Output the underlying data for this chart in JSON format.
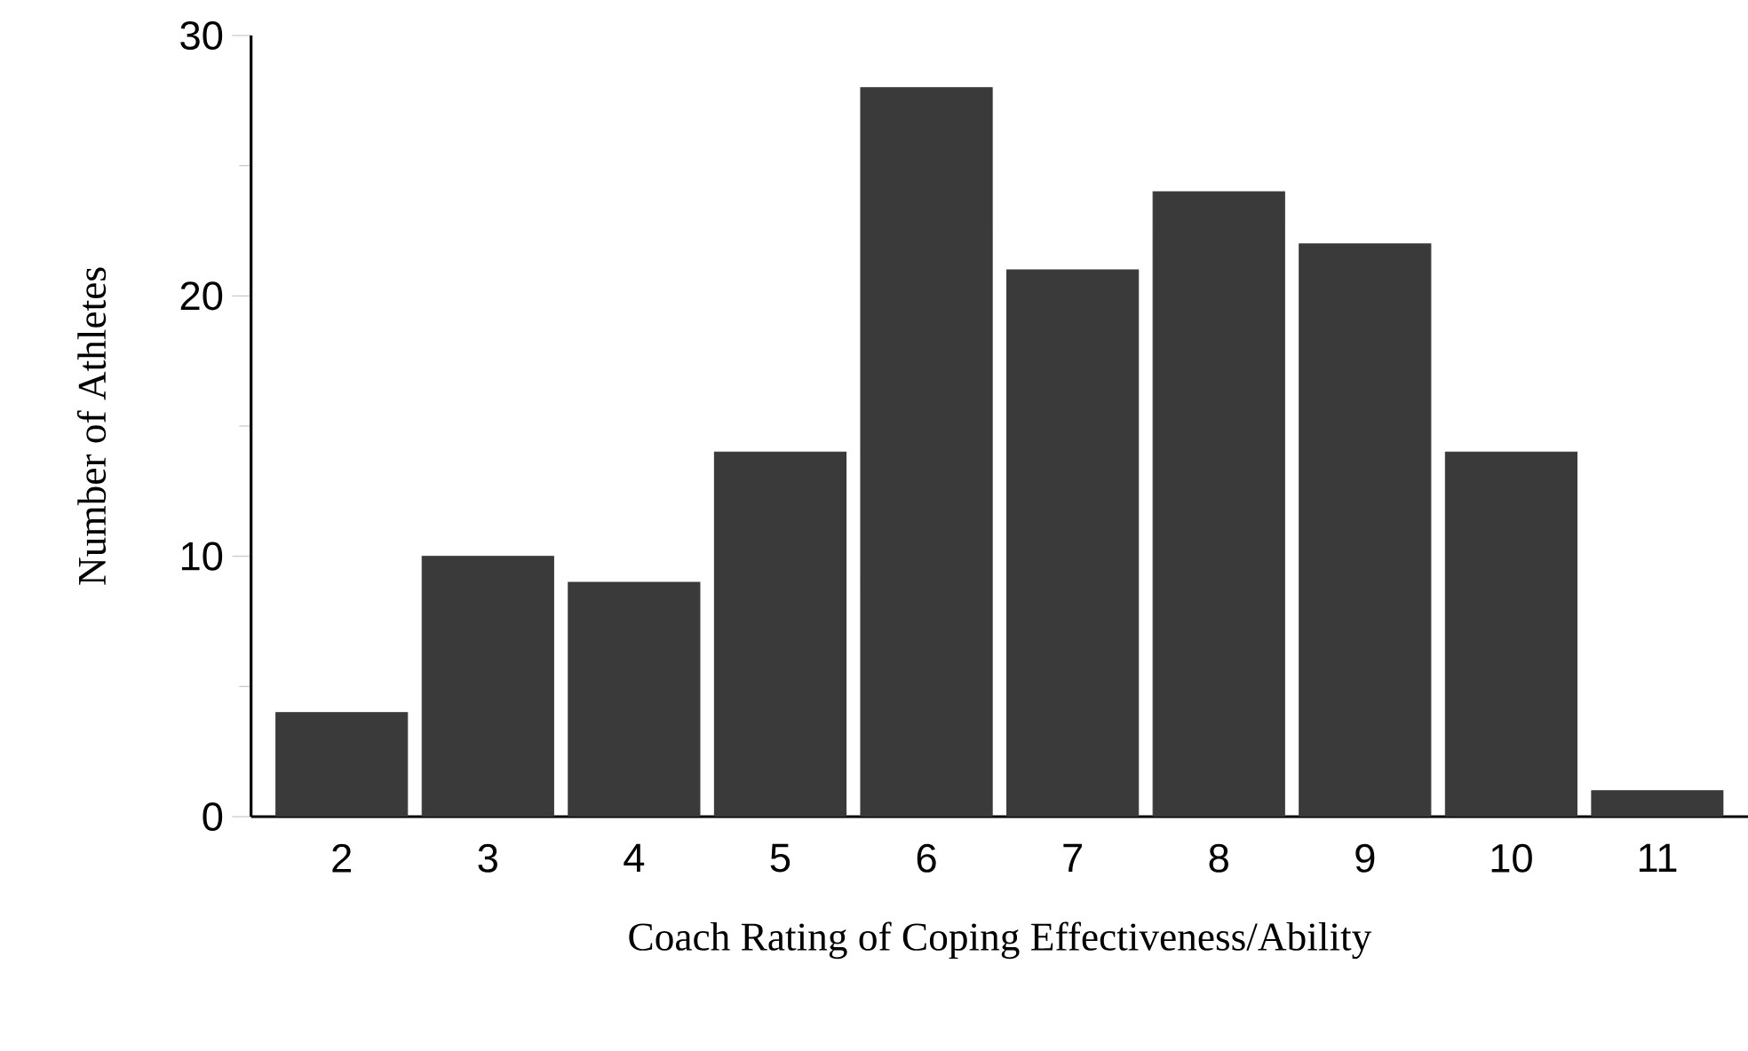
{
  "chart_data": {
    "type": "bar",
    "xlabel": "Coach Rating of Coping Effectiveness/Ability",
    "ylabel": "Number  of  Athletes",
    "categories": [
      "2",
      "3",
      "4",
      "5",
      "6",
      "7",
      "8",
      "9",
      "10",
      "11"
    ],
    "values": [
      4,
      10,
      9,
      14,
      28,
      21,
      24,
      22,
      14,
      1
    ],
    "color": "#3a3a3a",
    "ylim": [
      0,
      30
    ],
    "yticks": [
      0,
      10,
      20,
      30
    ],
    "grid": false
  }
}
